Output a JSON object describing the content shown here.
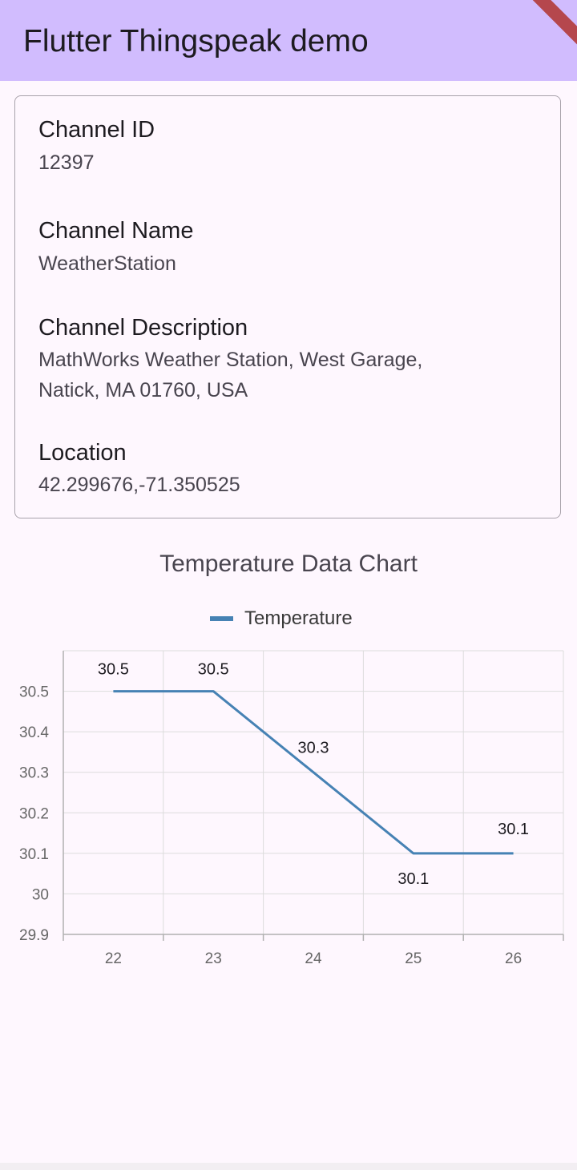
{
  "app": {
    "title": "Flutter Thingspeak demo"
  },
  "channel": {
    "id_label": "Channel ID",
    "id_value": "12397",
    "name_label": "Channel Name",
    "name_value": "WeatherStation",
    "description_label": "Channel Description",
    "description_value_line1": "MathWorks Weather Station, West Garage,",
    "description_value_line2": "Natick, MA 01760, USA",
    "location_label": "Location",
    "location_value": "42.299676,-71.350525"
  },
  "colors": {
    "appbar": "#d1bcfe",
    "series": "#4682b4",
    "background": "#fef7fe"
  },
  "chart_data": {
    "type": "line",
    "title": "Temperature Data Chart",
    "xlabel": "",
    "ylabel": "",
    "x": [
      22,
      23,
      24,
      25,
      26
    ],
    "x_ticks": [
      "22",
      "23",
      "24",
      "25",
      "26"
    ],
    "y_ticks": [
      "30.5",
      "30.4",
      "30.3",
      "30.2",
      "30.1",
      "30",
      "29.9"
    ],
    "ylim": [
      29.9,
      30.6
    ],
    "grid": true,
    "legend_position": "top-center",
    "series": [
      {
        "name": "Temperature",
        "x": [
          22,
          23,
          25,
          26
        ],
        "values": [
          30.5,
          30.5,
          30.1,
          30.1
        ],
        "data_labels": [
          "30.5",
          "30.5",
          "30.1",
          "30.1"
        ]
      }
    ],
    "annotations": [
      {
        "text": "30.3",
        "x": 24,
        "y": 30.3
      }
    ]
  }
}
